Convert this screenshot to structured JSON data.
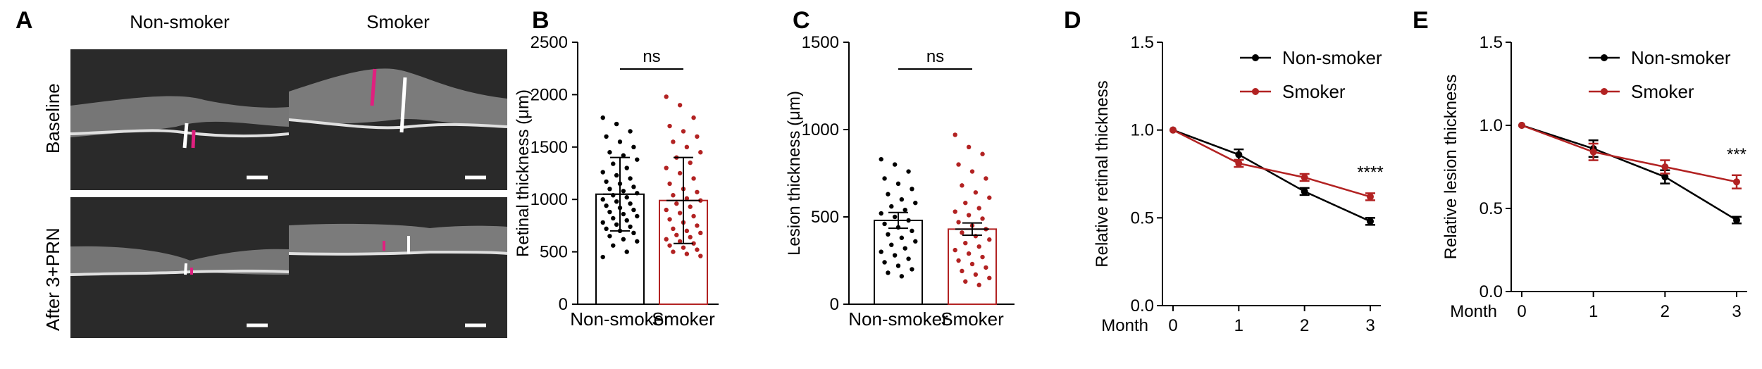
{
  "panel_labels": {
    "a": "A",
    "b": "B",
    "c": "C",
    "d": "D",
    "e": "E"
  },
  "panel_a": {
    "columns": [
      "Non-smoker",
      "Smoker"
    ],
    "rows": [
      "Baseline",
      "After 3+PRN"
    ]
  },
  "colors": {
    "non_smoker": "#000000",
    "smoker": "#b22222",
    "oct_background": "#2a2a2a"
  },
  "chart_data": [
    {
      "id": "B",
      "type": "bar",
      "categories": [
        "Non-smoker",
        "Smoker"
      ],
      "values": [
        1050,
        990
      ],
      "sd": [
        350,
        410
      ],
      "ylabel": "Retinal thickness (μm)",
      "ylim": [
        0,
        2500
      ],
      "yticks": [
        0,
        500,
        1000,
        1500,
        2000,
        2500
      ],
      "annotation": "ns",
      "points": [
        [
          1780,
          1720,
          1650,
          1600,
          1550,
          1500,
          1450,
          1420,
          1380,
          1340,
          1300,
          1260,
          1230,
          1200,
          1170,
          1150,
          1120,
          1100,
          1080,
          1060,
          1040,
          1020,
          1000,
          980,
          960,
          940,
          920,
          900,
          880,
          860,
          840,
          820,
          800,
          780,
          760,
          740,
          720,
          700,
          680,
          650,
          620,
          600,
          560,
          500,
          450
        ],
        [
          1980,
          1900,
          1780,
          1700,
          1650,
          1600,
          1550,
          1500,
          1450,
          1400,
          1350,
          1300,
          1250,
          1200,
          1150,
          1100,
          1070,
          1040,
          1010,
          990,
          960,
          930,
          900,
          870,
          840,
          810,
          780,
          750,
          720,
          700,
          680,
          660,
          640,
          620,
          600,
          580,
          560,
          540,
          520,
          500,
          480,
          460
        ]
      ]
    },
    {
      "id": "C",
      "type": "bar",
      "categories": [
        "Non-smoker",
        "Smoker"
      ],
      "values": [
        480,
        430
      ],
      "sem": [
        45,
        35
      ],
      "ylabel": "Lesion thickness (μm)",
      "ylim": [
        0,
        1500
      ],
      "yticks": [
        0,
        500,
        1000,
        1500
      ],
      "annotation": "ns",
      "points": [
        [
          830,
          800,
          760,
          720,
          690,
          660,
          630,
          600,
          580,
          560,
          540,
          520,
          500,
          480,
          460,
          440,
          420,
          400,
          380,
          360,
          340,
          320,
          300,
          280,
          260,
          240,
          220,
          200,
          180,
          160
        ],
        [
          970,
          900,
          860,
          800,
          760,
          720,
          680,
          640,
          610,
          580,
          550,
          530,
          510,
          490,
          470,
          450,
          430,
          410,
          390,
          370,
          350,
          330,
          310,
          290,
          270,
          250,
          230,
          210,
          190,
          170,
          150,
          130,
          110
        ]
      ]
    },
    {
      "id": "D",
      "type": "line",
      "x": [
        0,
        1,
        2,
        3
      ],
      "xlabel": "Month",
      "ylabel": "Relative retinal thickness",
      "ylim": [
        0.0,
        1.5
      ],
      "yticks": [
        "0.0",
        "0.5",
        "1.0",
        "1.5"
      ],
      "legend": "top-right",
      "series": [
        {
          "name": "Non-smoker",
          "values": [
            1.0,
            0.86,
            0.65,
            0.48
          ],
          "err": [
            0,
            0.03,
            0.02,
            0.02
          ]
        },
        {
          "name": "Smoker",
          "values": [
            1.0,
            0.81,
            0.73,
            0.62
          ],
          "err": [
            0,
            0.02,
            0.02,
            0.02
          ]
        }
      ],
      "annotation": "****"
    },
    {
      "id": "E",
      "type": "line",
      "x": [
        0,
        1,
        2,
        3
      ],
      "xlabel": "Month",
      "ylabel": "Relative lesion thickness",
      "ylim": [
        0.0,
        1.5
      ],
      "yticks": [
        "0.0",
        "0.5",
        "1.0",
        "1.5"
      ],
      "legend": "top-right",
      "series": [
        {
          "name": "Non-smoker",
          "values": [
            1.0,
            0.86,
            0.69,
            0.43
          ],
          "err": [
            0,
            0.05,
            0.04,
            0.02
          ]
        },
        {
          "name": "Smoker",
          "values": [
            1.0,
            0.84,
            0.75,
            0.66
          ],
          "err": [
            0,
            0.05,
            0.04,
            0.04
          ]
        }
      ],
      "annotation": "***"
    }
  ]
}
